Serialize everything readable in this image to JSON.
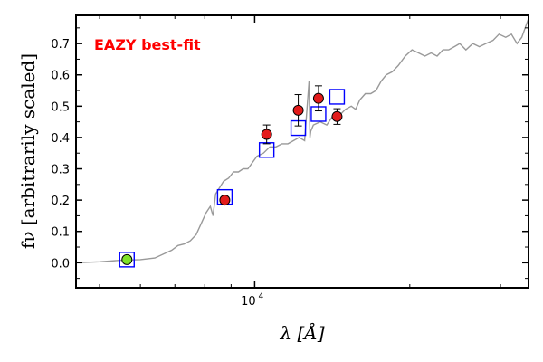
{
  "chart_data": {
    "type": "scatter",
    "title": "",
    "xlabel": "λ [Å]",
    "ylabel": "fν [arbitrarily scaled]",
    "xscale": "log",
    "xlim": [
      4500,
      34000
    ],
    "ylim": [
      -0.08,
      0.79
    ],
    "grid": false,
    "annotation": {
      "text": "EAZY best-fit",
      "color": "#ff0000"
    },
    "x_ticks": [
      {
        "value": 10000,
        "label": "10",
        "exponent": "4"
      }
    ],
    "y_ticks": [
      {
        "value": 0.0,
        "label": "0.0"
      },
      {
        "value": 0.1,
        "label": "0.1"
      },
      {
        "value": 0.2,
        "label": "0.2"
      },
      {
        "value": 0.3,
        "label": "0.3"
      },
      {
        "value": 0.4,
        "label": "0.4"
      },
      {
        "value": 0.5,
        "label": "0.5"
      },
      {
        "value": 0.6,
        "label": "0.6"
      },
      {
        "value": 0.7,
        "label": "0.7"
      }
    ],
    "series": [
      {
        "kind": "model-spectrum",
        "color": "#999999",
        "x": [
          4500,
          5000,
          5500,
          6000,
          6400,
          6700,
          6900,
          7100,
          7300,
          7500,
          7700,
          7900,
          8050,
          8200,
          8300,
          8400,
          8550,
          8700,
          8900,
          9100,
          9300,
          9500,
          9700,
          9900,
          10100,
          10400,
          10700,
          11000,
          11300,
          11600,
          11900,
          12200,
          12500,
          12750,
          12800,
          12850,
          13000,
          13400,
          13800,
          14200,
          14600,
          15000,
          15400,
          15700,
          16000,
          16400,
          16800,
          17200,
          17600,
          18000,
          18500,
          19000,
          19600,
          20200,
          20800,
          21400,
          22000,
          22600,
          23200,
          23800,
          24400,
          25000,
          25700,
          26500,
          27300,
          28100,
          29000,
          29800,
          30700,
          31500,
          32300,
          33000,
          33500,
          34000
        ],
        "y": [
          0.0,
          0.003,
          0.008,
          0.01,
          0.015,
          0.03,
          0.04,
          0.055,
          0.06,
          0.07,
          0.09,
          0.13,
          0.16,
          0.18,
          0.15,
          0.22,
          0.24,
          0.26,
          0.27,
          0.29,
          0.29,
          0.3,
          0.3,
          0.32,
          0.34,
          0.35,
          0.37,
          0.37,
          0.38,
          0.38,
          0.39,
          0.4,
          0.39,
          0.58,
          0.4,
          0.42,
          0.44,
          0.45,
          0.44,
          0.47,
          0.47,
          0.49,
          0.5,
          0.49,
          0.52,
          0.54,
          0.54,
          0.55,
          0.58,
          0.6,
          0.61,
          0.63,
          0.66,
          0.68,
          0.67,
          0.66,
          0.67,
          0.66,
          0.68,
          0.68,
          0.69,
          0.7,
          0.68,
          0.7,
          0.69,
          0.7,
          0.71,
          0.73,
          0.72,
          0.73,
          0.7,
          0.72,
          0.75,
          0.78
        ]
      },
      {
        "kind": "model-photometry",
        "marker": "open-square",
        "color": "#0000ff",
        "x": [
          5650,
          8750,
          10550,
          12150,
          13300,
          14450
        ],
        "y": [
          0.01,
          0.21,
          0.36,
          0.43,
          0.475,
          0.53
        ]
      },
      {
        "kind": "observed-photometry",
        "marker": "circle",
        "color": "#e31b1b",
        "x": [
          8750,
          10550,
          12150,
          13300,
          14450
        ],
        "y": [
          0.2,
          0.41,
          0.487,
          0.525,
          0.467
        ],
        "yerr": [
          0.0,
          0.03,
          0.05,
          0.04,
          0.025
        ]
      },
      {
        "kind": "observed-photometry-alt",
        "marker": "circle",
        "color": "#7fe22a",
        "x": [
          5650
        ],
        "y": [
          0.01
        ]
      }
    ]
  }
}
